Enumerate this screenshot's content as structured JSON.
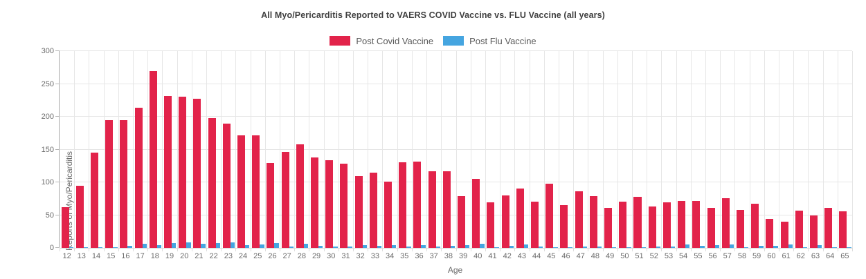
{
  "title": "All Myo/Pericarditis Reported to VAERS COVID Vaccine vs. FLU Vaccine (all years)",
  "legend": {
    "items": [
      {
        "label": "Post Covid Vaccine",
        "color": "#e2234a"
      },
      {
        "label": "Post Flu Vaccine",
        "color": "#45a5e0"
      }
    ]
  },
  "axes": {
    "x_title": "Age",
    "y_title": "Reports of Myo/Pericarditis",
    "y_ticks": [
      0,
      50,
      100,
      150,
      200,
      250,
      300
    ]
  },
  "chart_data": {
    "type": "bar",
    "title": "All Myo/Pericarditis Reported to VAERS COVID Vaccine vs. FLU Vaccine (all years)",
    "xlabel": "Age",
    "ylabel": "Reports of Myo/Pericarditis",
    "ylim": [
      0,
      300
    ],
    "grid": true,
    "legend_position": "top-center",
    "categories": [
      "12",
      "13",
      "14",
      "15",
      "16",
      "17",
      "18",
      "19",
      "20",
      "21",
      "22",
      "23",
      "24",
      "25",
      "26",
      "27",
      "28",
      "29",
      "30",
      "31",
      "32",
      "33",
      "34",
      "35",
      "36",
      "37",
      "38",
      "39",
      "40",
      "41",
      "42",
      "43",
      "44",
      "45",
      "46",
      "47",
      "48",
      "49",
      "50",
      "51",
      "52",
      "53",
      "54",
      "55",
      "56",
      "57",
      "58",
      "59",
      "60",
      "61",
      "62",
      "63",
      "64",
      "65"
    ],
    "series": [
      {
        "name": "Post Covid Vaccine",
        "color": "#e2234a",
        "values": [
          62,
          95,
          145,
          195,
          195,
          214,
          269,
          232,
          231,
          227,
          198,
          189,
          172,
          172,
          129,
          146,
          158,
          138,
          134,
          128,
          109,
          115,
          101,
          131,
          132,
          117,
          117,
          79,
          105,
          69,
          80,
          91,
          71,
          98,
          65,
          86,
          79,
          61,
          71,
          78,
          63,
          69,
          72,
          72,
          61,
          76,
          58,
          67,
          44,
          40,
          57,
          50,
          61,
          56
        ]
      },
      {
        "name": "Post Flu Vaccine",
        "color": "#45a5e0",
        "values": [
          1,
          1,
          1,
          1,
          3,
          6,
          4,
          7,
          8,
          6,
          7,
          8,
          4,
          5,
          7,
          2,
          6,
          3,
          2,
          2,
          4,
          3,
          4,
          2,
          4,
          2,
          3,
          4,
          6,
          1,
          3,
          5,
          2,
          1,
          1,
          2,
          2,
          1,
          1,
          1,
          2,
          2,
          5,
          3,
          4,
          5,
          1,
          3,
          3,
          5,
          1,
          4,
          1,
          1
        ]
      }
    ]
  }
}
